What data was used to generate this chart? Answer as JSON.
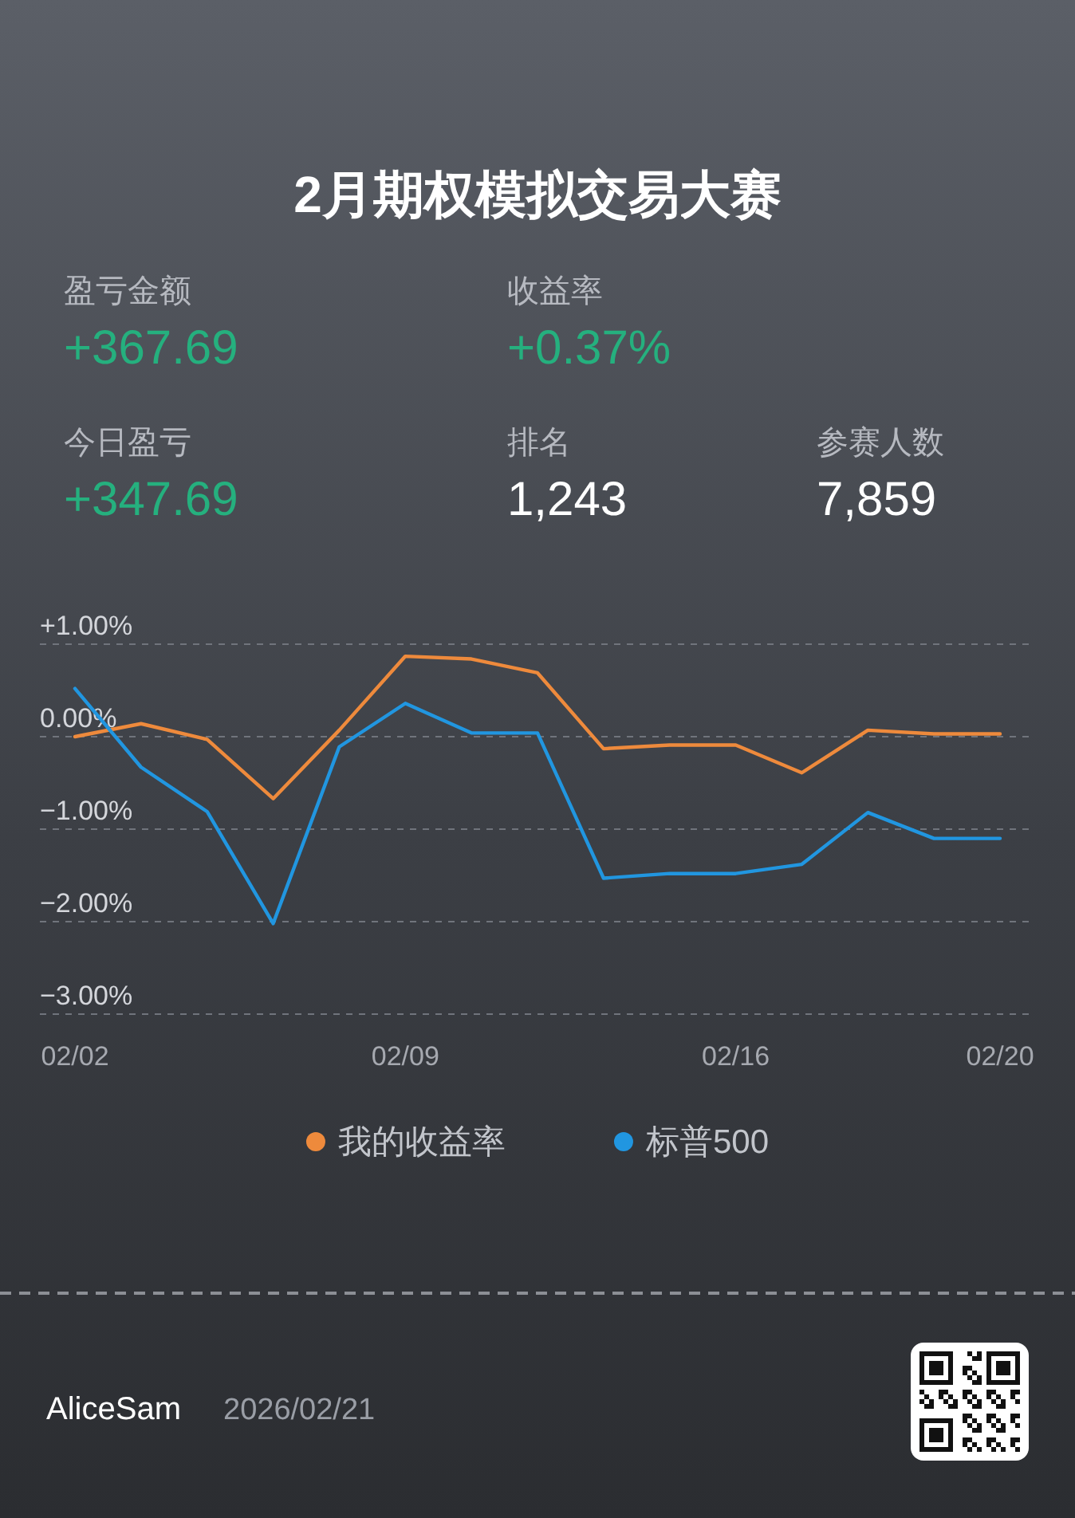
{
  "chart_data": {
    "type": "line",
    "title": "2月期权模拟交易大赛",
    "categories": [
      "02/02",
      null,
      null,
      null,
      null,
      "02/09",
      null,
      null,
      null,
      null,
      "02/16",
      null,
      null,
      null,
      "02/20"
    ],
    "series": [
      {
        "name": "我的收益率",
        "color": "#ee8a3c",
        "values": [
          0.0,
          0.14,
          -0.03,
          -0.67,
          0.07,
          0.87,
          0.84,
          0.69,
          -0.13,
          -0.09,
          -0.09,
          -0.39,
          0.07,
          0.03,
          0.03
        ]
      },
      {
        "name": "标普500",
        "color": "#2196e0",
        "values": [
          0.52,
          -0.33,
          -0.81,
          -2.02,
          -0.11,
          0.36,
          0.04,
          0.04,
          -1.53,
          -1.48,
          -1.48,
          -1.38,
          -0.82,
          -1.1,
          -1.1
        ]
      }
    ],
    "ylim": [
      -3,
      1
    ],
    "yticks": [
      {
        "value": 1,
        "label": "+1.00%"
      },
      {
        "value": 0,
        "label": "0.00%"
      },
      {
        "value": -1,
        "label": "−1.00%"
      },
      {
        "value": -2,
        "label": "−2.00%"
      },
      {
        "value": -3,
        "label": "−3.00%"
      }
    ],
    "grid": "y",
    "legend": "bottom",
    "annotations": [
      "盈亏金额",
      "+367.69",
      "收益率",
      "+0.37%",
      "今日盈亏",
      "+347.69",
      "排名",
      "1,243",
      "参赛人数",
      "7,859",
      "AliceSam",
      "2026/02/21"
    ]
  }
}
